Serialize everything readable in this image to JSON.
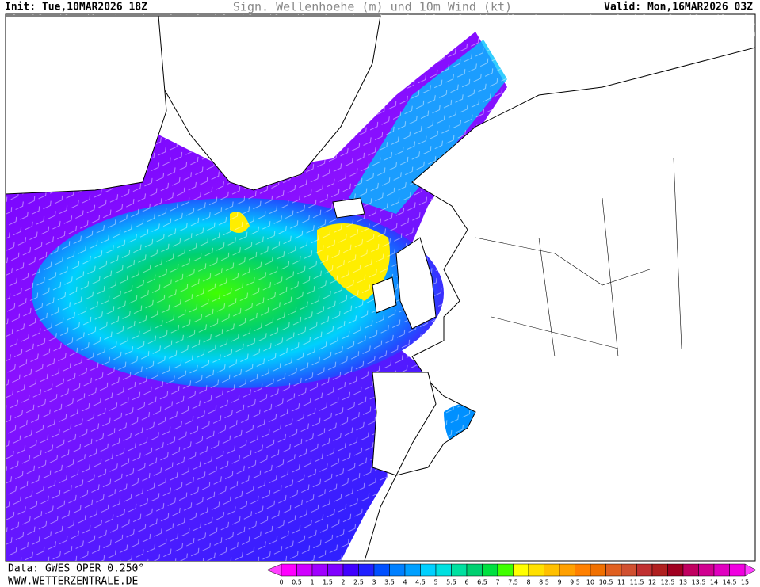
{
  "header": {
    "init": "Init: Tue,10MAR2026 18Z",
    "title": "Sign. Wellenhoehe (m) und 10m Wind (kt)",
    "valid": "Valid: Mon,16MAR2026 03Z"
  },
  "footer": {
    "data": "Data: GWES OPER 0.250°",
    "website": "WWW.WETTERZENTRALE.DE"
  },
  "colorbar": {
    "labels": [
      0,
      0.5,
      1,
      1.5,
      2,
      2.5,
      3,
      3.5,
      4,
      4.5,
      5,
      5.5,
      6,
      6.5,
      7,
      7.5,
      8,
      8.5,
      9,
      9.5,
      10,
      10.5,
      11,
      11.5,
      12,
      12.5,
      13,
      13.5,
      14,
      14.5,
      15
    ],
    "colors": [
      "#ff00ff",
      "#d000ff",
      "#a000ff",
      "#8000ff",
      "#4000ff",
      "#2020ff",
      "#0050ff",
      "#0080ff",
      "#00a0ff",
      "#00d0ff",
      "#00e0e0",
      "#00e0a0",
      "#00d070",
      "#00e040",
      "#40ff00",
      "#ffff00",
      "#ffe000",
      "#ffc000",
      "#ffa000",
      "#ff8000",
      "#f07000",
      "#e06020",
      "#d05030",
      "#c03030",
      "#b02020",
      "#a00020",
      "#c00060",
      "#d00090",
      "#e000c0",
      "#f000e0"
    ],
    "under_color": "#ff40ff",
    "over_color": "#ff40ff"
  }
}
